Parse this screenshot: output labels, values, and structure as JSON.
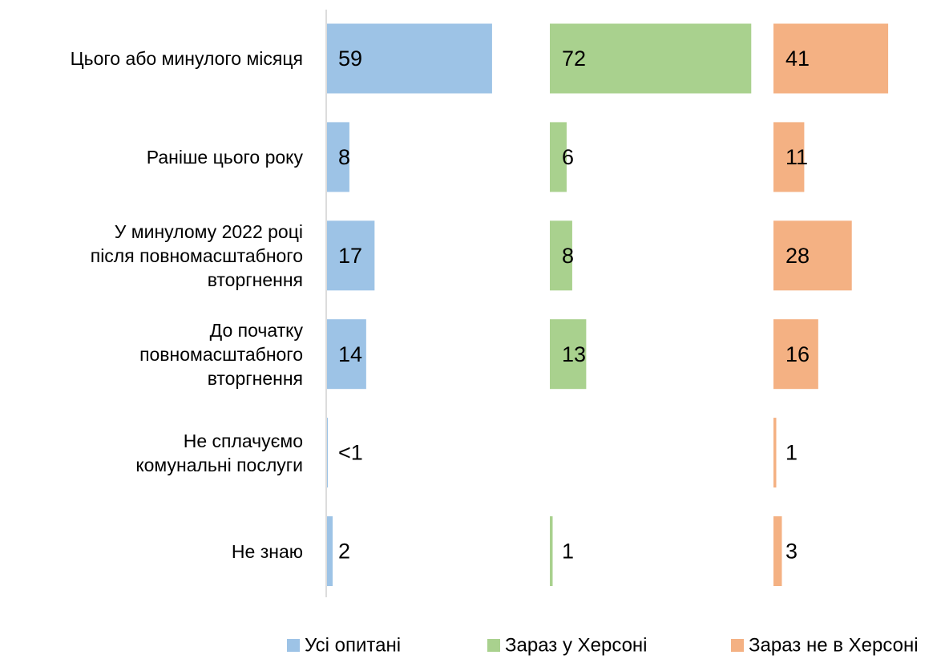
{
  "chart_data": {
    "type": "bar",
    "categories": [
      "Цього або минулого місяця",
      "Раніше цього року",
      "У минулому 2022 році\nпісля повномасштабного\nвторгнення",
      "До початку\nповномасштабного\nвторгнення",
      "Не сплачуємо\nкомунальні послуги",
      "Не знаю"
    ],
    "series": [
      {
        "name": "Усі опитані",
        "color": "#9dc3e6",
        "values": [
          59,
          8,
          17,
          14,
          0.3,
          2
        ],
        "value_labels": [
          "59",
          "8",
          "17",
          "14",
          "<1",
          "2"
        ]
      },
      {
        "name": "Зараз у Херсоні",
        "color": "#a9d18e",
        "values": [
          72,
          6,
          8,
          13,
          null,
          1
        ]
      },
      {
        "name": "Зараз не в Херсоні",
        "color": "#f4b183",
        "values": [
          41,
          11,
          28,
          16,
          1,
          3
        ]
      }
    ],
    "legend": "bottom"
  }
}
